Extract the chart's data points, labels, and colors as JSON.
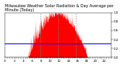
{
  "title": "Milwaukee Weather Solar Radiation & Day Average per Minute (Today)",
  "bar_color": "#ff0000",
  "avg_line_color": "#0000ff",
  "background_color": "#ffffff",
  "plot_bg_color": "#ffffff",
  "grid_color": "#888888",
  "avg_value": 0.32,
  "ylim": [
    0,
    1.0
  ],
  "num_bars": 480,
  "peak_value": 0.92,
  "day_start": 0.22,
  "day_end": 0.78,
  "vlines": [
    0.335,
    0.5,
    0.665
  ],
  "title_fontsize": 3.5,
  "tick_fontsize": 2.8
}
